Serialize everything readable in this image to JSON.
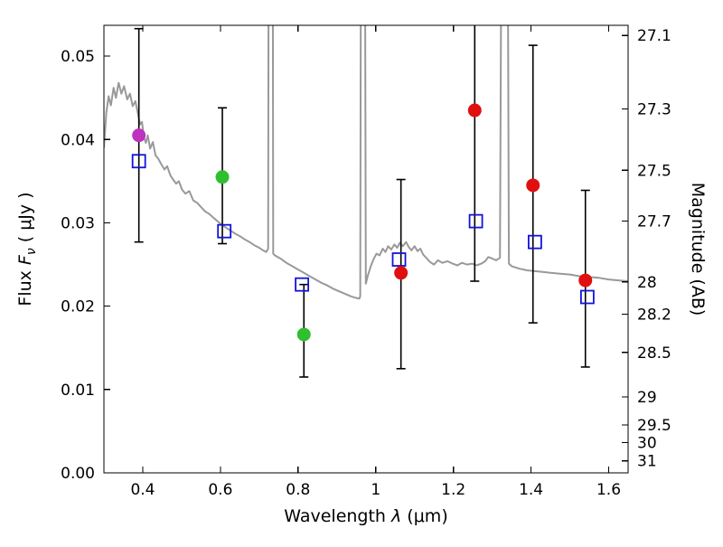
{
  "figure": {
    "background": "#ffffff",
    "frame_color": "#000000",
    "tick_fontsize": 17,
    "label_fontsize": 19
  },
  "chart_data": {
    "type": "line+scatter",
    "xlabel": {
      "prefix": "Wavelength  ",
      "symbol": "λ",
      "suffix": " (μm)"
    },
    "ylabel_left": {
      "prefix": "Flux  ",
      "symbol": "F",
      "subscript": "ν",
      "suffix": "  ( μJy )"
    },
    "ylabel_right": "Magnitude (AB)",
    "xlim": [
      0.3,
      1.65
    ],
    "ylim_flux": [
      0.0,
      0.0537
    ],
    "grid": false,
    "x_ticks": {
      "values": [
        0.4,
        0.6,
        0.8,
        1.0,
        1.2,
        1.4,
        1.6
      ],
      "labels": [
        "0.4",
        "0.6",
        "0.8",
        "1",
        "1.2",
        "1.4",
        "1.6"
      ]
    },
    "y_ticks_left": {
      "values": [
        0.0,
        0.01,
        0.02,
        0.03,
        0.04,
        0.05
      ],
      "labels": [
        "0.00",
        "0.01",
        "0.02",
        "0.03",
        "0.04",
        "0.05"
      ]
    },
    "y_ticks_right": {
      "magnitudes": [
        27.1,
        27.3,
        27.5,
        27.7,
        28.0,
        28.2,
        28.5,
        29.0,
        29.5,
        30.0,
        31.0
      ],
      "labels": [
        "27.1",
        "27.3",
        "27.5",
        "27.7",
        "28",
        "28.2",
        "28.5",
        "29",
        "29.5",
        "30",
        "31"
      ],
      "mag_zeropoint_ujy": 23.9
    },
    "spectrum": {
      "name": "model-spectrum",
      "color": "#999999",
      "linewidth": 2,
      "points": [
        [
          0.3,
          0.039
        ],
        [
          0.306,
          0.0432
        ],
        [
          0.312,
          0.0452
        ],
        [
          0.318,
          0.0441
        ],
        [
          0.325,
          0.0462
        ],
        [
          0.331,
          0.045
        ],
        [
          0.338,
          0.0468
        ],
        [
          0.345,
          0.0455
        ],
        [
          0.352,
          0.0464
        ],
        [
          0.36,
          0.0448
        ],
        [
          0.367,
          0.0455
        ],
        [
          0.374,
          0.044
        ],
        [
          0.381,
          0.0446
        ],
        [
          0.388,
          0.043
        ],
        [
          0.393,
          0.0418
        ],
        [
          0.398,
          0.0421
        ],
        [
          0.403,
          0.0402
        ],
        [
          0.408,
          0.0396
        ],
        [
          0.413,
          0.0405
        ],
        [
          0.419,
          0.0389
        ],
        [
          0.426,
          0.0397
        ],
        [
          0.433,
          0.0381
        ],
        [
          0.44,
          0.0377
        ],
        [
          0.448,
          0.037
        ],
        [
          0.456,
          0.0364
        ],
        [
          0.463,
          0.0368
        ],
        [
          0.471,
          0.0357
        ],
        [
          0.478,
          0.0352
        ],
        [
          0.486,
          0.0347
        ],
        [
          0.493,
          0.035
        ],
        [
          0.501,
          0.034
        ],
        [
          0.51,
          0.0335
        ],
        [
          0.52,
          0.0338
        ],
        [
          0.53,
          0.0327
        ],
        [
          0.54,
          0.0324
        ],
        [
          0.55,
          0.0319
        ],
        [
          0.56,
          0.0314
        ],
        [
          0.57,
          0.0311
        ],
        [
          0.58,
          0.0307
        ],
        [
          0.59,
          0.0303
        ],
        [
          0.6,
          0.0299
        ],
        [
          0.612,
          0.0295
        ],
        [
          0.625,
          0.0291
        ],
        [
          0.638,
          0.0287
        ],
        [
          0.65,
          0.0284
        ],
        [
          0.663,
          0.028
        ],
        [
          0.675,
          0.0277
        ],
        [
          0.688,
          0.0273
        ],
        [
          0.7,
          0.027
        ],
        [
          0.71,
          0.0267
        ],
        [
          0.718,
          0.0265
        ],
        [
          0.723,
          0.0269
        ],
        [
          0.725,
          0.09
        ],
        [
          0.734,
          0.09
        ],
        [
          0.736,
          0.0263
        ],
        [
          0.74,
          0.0261
        ],
        [
          0.755,
          0.0257
        ],
        [
          0.77,
          0.0252
        ],
        [
          0.785,
          0.0248
        ],
        [
          0.8,
          0.0244
        ],
        [
          0.815,
          0.024
        ],
        [
          0.83,
          0.0236
        ],
        [
          0.845,
          0.0232
        ],
        [
          0.86,
          0.0228
        ],
        [
          0.875,
          0.0225
        ],
        [
          0.89,
          0.0221
        ],
        [
          0.905,
          0.0218
        ],
        [
          0.92,
          0.0215
        ],
        [
          0.935,
          0.0212
        ],
        [
          0.948,
          0.021
        ],
        [
          0.958,
          0.0209
        ],
        [
          0.96,
          0.0212
        ],
        [
          0.963,
          0.09
        ],
        [
          0.971,
          0.09
        ],
        [
          0.9745,
          0.0227
        ],
        [
          0.98,
          0.0237
        ],
        [
          0.988,
          0.0249
        ],
        [
          0.995,
          0.0257
        ],
        [
          1.002,
          0.0263
        ],
        [
          1.01,
          0.0261
        ],
        [
          1.018,
          0.0269
        ],
        [
          1.025,
          0.0265
        ],
        [
          1.032,
          0.0272
        ],
        [
          1.04,
          0.0268
        ],
        [
          1.048,
          0.0274
        ],
        [
          1.055,
          0.027
        ],
        [
          1.062,
          0.0276
        ],
        [
          1.07,
          0.0272
        ],
        [
          1.078,
          0.0277
        ],
        [
          1.085,
          0.0271
        ],
        [
          1.092,
          0.0267
        ],
        [
          1.1,
          0.0272
        ],
        [
          1.108,
          0.0266
        ],
        [
          1.115,
          0.0269
        ],
        [
          1.122,
          0.0262
        ],
        [
          1.13,
          0.0258
        ],
        [
          1.14,
          0.0253
        ],
        [
          1.15,
          0.025
        ],
        [
          1.16,
          0.0255
        ],
        [
          1.172,
          0.0252
        ],
        [
          1.185,
          0.0254
        ],
        [
          1.198,
          0.0251
        ],
        [
          1.21,
          0.0249
        ],
        [
          1.222,
          0.0252
        ],
        [
          1.235,
          0.025
        ],
        [
          1.248,
          0.0251
        ],
        [
          1.26,
          0.0249
        ],
        [
          1.272,
          0.0251
        ],
        [
          1.282,
          0.0254
        ],
        [
          1.29,
          0.0259
        ],
        [
          1.296,
          0.0258
        ],
        [
          1.31,
          0.0255
        ],
        [
          1.32,
          0.0258
        ],
        [
          1.326,
          0.09
        ],
        [
          1.338,
          0.09
        ],
        [
          1.343,
          0.0251
        ],
        [
          1.35,
          0.0248
        ],
        [
          1.37,
          0.0245
        ],
        [
          1.39,
          0.0243
        ],
        [
          1.41,
          0.0242
        ],
        [
          1.43,
          0.0241
        ],
        [
          1.45,
          0.024
        ],
        [
          1.475,
          0.0239
        ],
        [
          1.5,
          0.0238
        ],
        [
          1.525,
          0.0236
        ],
        [
          1.55,
          0.0235
        ],
        [
          1.575,
          0.0234
        ],
        [
          1.6,
          0.0232
        ],
        [
          1.625,
          0.0231
        ],
        [
          1.65,
          0.023
        ]
      ]
    },
    "observed_points": {
      "name": "observed-photometry",
      "marker": "filled-circle",
      "radius": 7.5,
      "errorbar_color": "#000000",
      "points": [
        {
          "lambda": 0.39,
          "flux": 0.0405,
          "err_lo": 0.0128,
          "err_hi": 0.0128,
          "color": "#bd33bd"
        },
        {
          "lambda": 0.605,
          "flux": 0.0355,
          "err_lo": 0.008,
          "err_hi": 0.0083,
          "color": "#2fbf2f"
        },
        {
          "lambda": 0.815,
          "flux": 0.0166,
          "err_lo": 0.0051,
          "err_hi": 0.006,
          "color": "#2fbf2f"
        },
        {
          "lambda": 1.065,
          "flux": 0.024,
          "err_lo": 0.0115,
          "err_hi": 0.0112,
          "color": "#e01010"
        },
        {
          "lambda": 1.255,
          "flux": 0.0435,
          "err_lo": 0.0205,
          "err_hi": 0.0205,
          "color": "#e01010"
        },
        {
          "lambda": 1.405,
          "flux": 0.0345,
          "err_lo": 0.0165,
          "err_hi": 0.0168,
          "color": "#e01010"
        },
        {
          "lambda": 1.54,
          "flux": 0.0231,
          "err_lo": 0.0104,
          "err_hi": 0.0108,
          "color": "#e01010"
        }
      ]
    },
    "model_points": {
      "name": "model-photometry",
      "marker": "open-square",
      "size": 14,
      "color": "#1212dd",
      "points": [
        {
          "lambda": 0.39,
          "flux": 0.0374
        },
        {
          "lambda": 0.61,
          "flux": 0.029
        },
        {
          "lambda": 0.81,
          "flux": 0.0226
        },
        {
          "lambda": 1.06,
          "flux": 0.0256
        },
        {
          "lambda": 1.258,
          "flux": 0.0302
        },
        {
          "lambda": 1.41,
          "flux": 0.0277
        },
        {
          "lambda": 1.545,
          "flux": 0.0211
        }
      ]
    }
  }
}
